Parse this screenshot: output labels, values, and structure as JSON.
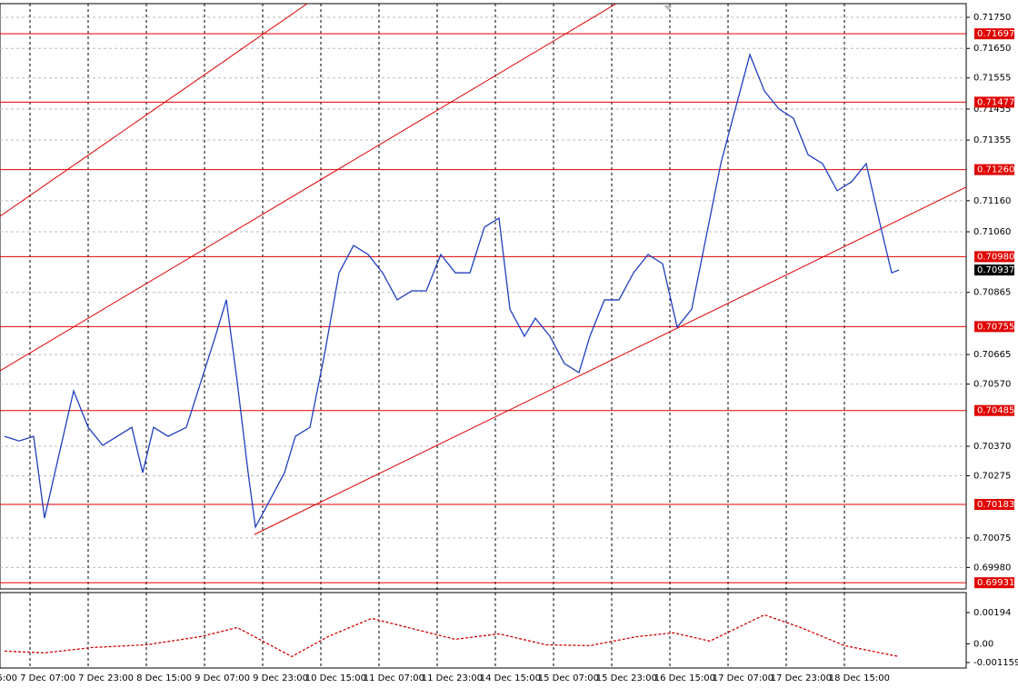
{
  "chart_data": [
    {
      "type": "line",
      "color": "#1f3fbf",
      "x": [
        9,
        13,
        17,
        20,
        24,
        28,
        32,
        36,
        40,
        44,
        47,
        50,
        54,
        59,
        63,
        67,
        70,
        73,
        76,
        78,
        82,
        86,
        89,
        93,
        97,
        101,
        105,
        109,
        113,
        117,
        121,
        125,
        129,
        133,
        137,
        141,
        145,
        148,
        152,
        155,
        159,
        163,
        167,
        170,
        174,
        178,
        182,
        186,
        190,
        194,
        198,
        202,
        206,
        210,
        214,
        218,
        222,
        226,
        230,
        234,
        238,
        242,
        246,
        250,
        253,
        255
      ],
      "values": [
        0.70402,
        0.70387,
        0.70402,
        0.70139,
        0.70344,
        0.70548,
        0.70431,
        0.70373,
        0.70402,
        0.70431,
        0.70285,
        0.70431,
        0.70402,
        0.70431,
        0.70577,
        0.70724,
        0.70841,
        0.70577,
        0.70285,
        0.7011,
        0.70197,
        0.70285,
        0.70402,
        0.70431,
        0.70665,
        0.70928,
        0.71016,
        0.70987,
        0.70928,
        0.70841,
        0.7087,
        0.7087,
        0.70987,
        0.70928,
        0.70928,
        0.71075,
        0.71104,
        0.70811,
        0.70724,
        0.70782,
        0.70724,
        0.70636,
        0.70607,
        0.70724,
        0.70841,
        0.70841,
        0.70928,
        0.70987,
        0.70957,
        0.70753,
        0.70811,
        0.71045,
        0.71279,
        0.71455,
        0.7163,
        0.71513,
        0.71455,
        0.71425,
        0.71308,
        0.71279,
        0.71192,
        0.71221,
        0.71279,
        0.71075,
        0.70928,
        0.70937
      ],
      "xlim": [
        7.75,
        273.5
      ],
      "xticks": [
        {
          "value": 0,
          "label": "5:00"
        },
        {
          "value": 16,
          "label": "7 Dec 07:00"
        },
        {
          "value": 32,
          "label": "7 Dec 23:00"
        },
        {
          "value": 48,
          "label": "8 Dec 15:00"
        },
        {
          "value": 64,
          "label": "9 Dec 07:00"
        },
        {
          "value": 80,
          "label": "9 Dec 23:00"
        },
        {
          "value": 96,
          "label": "10 Dec 15:00"
        },
        {
          "value": 112,
          "label": "11 Dec 07:00"
        },
        {
          "value": 128,
          "label": "11 Dec 23:00"
        },
        {
          "value": 144,
          "label": "14 Dec 15:00"
        },
        {
          "value": 160,
          "label": "15 Dec 07:00"
        },
        {
          "value": 176,
          "label": "15 Dec 23:00"
        },
        {
          "value": 192,
          "label": "16 Dec 15:00"
        },
        {
          "value": 208,
          "label": "17 Dec 07:00"
        },
        {
          "value": 224,
          "label": "17 Dec 23:00"
        },
        {
          "value": 240,
          "label": "18 Dec 15:00"
        }
      ],
      "ylim": [
        0.69911,
        0.71794
      ],
      "yticks": [
        {
          "value": 0.7175,
          "label": "0.71750"
        },
        {
          "value": 0.7165,
          "label": "0.71650"
        },
        0.71555,
        0.71455,
        0.71355,
        {
          "value": 0.7116,
          "label": "0.71160"
        },
        {
          "value": 0.7106,
          "label": "0.71060"
        },
        0.70865,
        0.70665,
        {
          "value": 0.7057,
          "label": "0.70570"
        },
        {
          "value": 0.7037,
          "label": "0.70370"
        },
        0.70275,
        0.70075,
        {
          "value": 0.6998,
          "label": "0.69980"
        }
      ],
      "grid": true,
      "levels": [
        0.71697,
        0.71477,
        0.7126,
        0.7098,
        0.70755,
        0.70485,
        0.70183,
        0.69931
      ],
      "level_labels": [
        "0.71697",
        "0.71477",
        "0.71260",
        "0.70980",
        "0.70755",
        "0.70485",
        "0.70183",
        "0.69931"
      ],
      "level_color": "#e00000",
      "last_price": 0.70937
    },
    {
      "type": "line",
      "color": "#d00000",
      "line_style": "dashed",
      "x": [
        9,
        20,
        33,
        48,
        63,
        73,
        80,
        88,
        98,
        110,
        120,
        133,
        145,
        158,
        170,
        183,
        193,
        203,
        218,
        228,
        240,
        255
      ],
      "values": [
        -0.00045,
        -0.00056,
        -0.00023,
        -6e-05,
        0.00045,
        0.00101,
        0.00017,
        -0.00079,
        0.00045,
        0.00158,
        0.00101,
        0.00028,
        0.00062,
        -6e-05,
        -0.00011,
        0.00045,
        0.00068,
        0.00017,
        0.0018,
        0.00101,
        -0.00011,
        -0.00079
      ],
      "ylim": [
        -0.0015,
        0.00318
      ],
      "yticks": [
        0.00194,
        {
          "value": 0,
          "label": "0.00"
        },
        -0.001159
      ]
    }
  ]
}
